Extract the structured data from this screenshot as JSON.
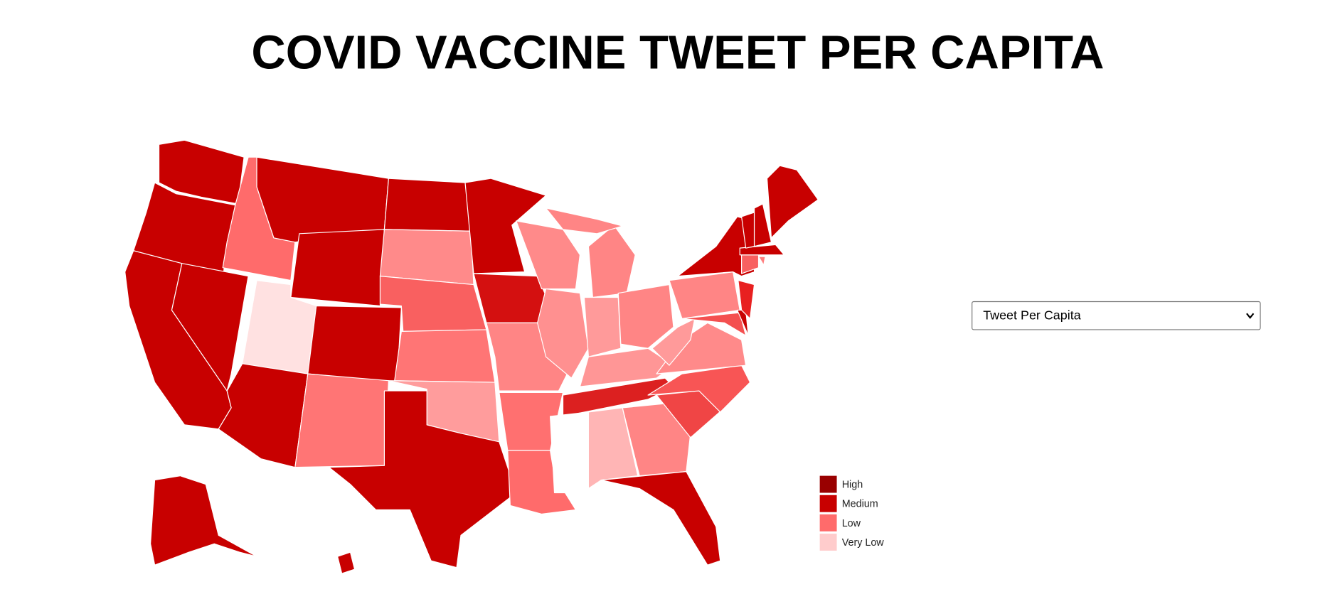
{
  "header": {
    "title": "COVID VACCINE TWEET PER CAPITA"
  },
  "map": {
    "region_fills": [
      "#c80000",
      "#c80000",
      "#c80000",
      "#c80000",
      "#ff6b6b",
      "#c80000",
      "#c80000",
      "#ffe1e1",
      "#c80000",
      "#c80000",
      "#ff7575",
      "#c80000",
      "#ff8a8a",
      "#f96060",
      "#ff7575",
      "#ff9c9c",
      "#c80000",
      "#c80000",
      "#d41010",
      "#ff8585",
      "#ff7070",
      "#ff6b6b",
      "#ff8a8a",
      "#ff9090",
      "#ff8585",
      "#ff8585",
      "#ff9a9a",
      "#ff8585",
      "#ff9696",
      "#dc2020",
      "#ffffff",
      "#ffb5b5",
      "#ff8585",
      "#c80000",
      "#f04545",
      "#f85555",
      "#ff8a8a",
      "#ff9a9a",
      "#ff8585",
      "#c80000",
      "#f45050",
      "#c80000",
      "#e82020",
      "#f86060",
      "#ff8080",
      "#c80000",
      "#c80000",
      "#c80000",
      "#c80000",
      "#c80000",
      "#c80000"
    ]
  },
  "legend": {
    "items": [
      {
        "label": "High",
        "color": "#990000"
      },
      {
        "label": "Medium",
        "color": "#c80000"
      },
      {
        "label": "Low",
        "color": "#ff6b6b"
      },
      {
        "label": "Very Low",
        "color": "#ffcccc"
      }
    ]
  },
  "dropdown": {
    "selected": "Tweet Per Capita"
  }
}
